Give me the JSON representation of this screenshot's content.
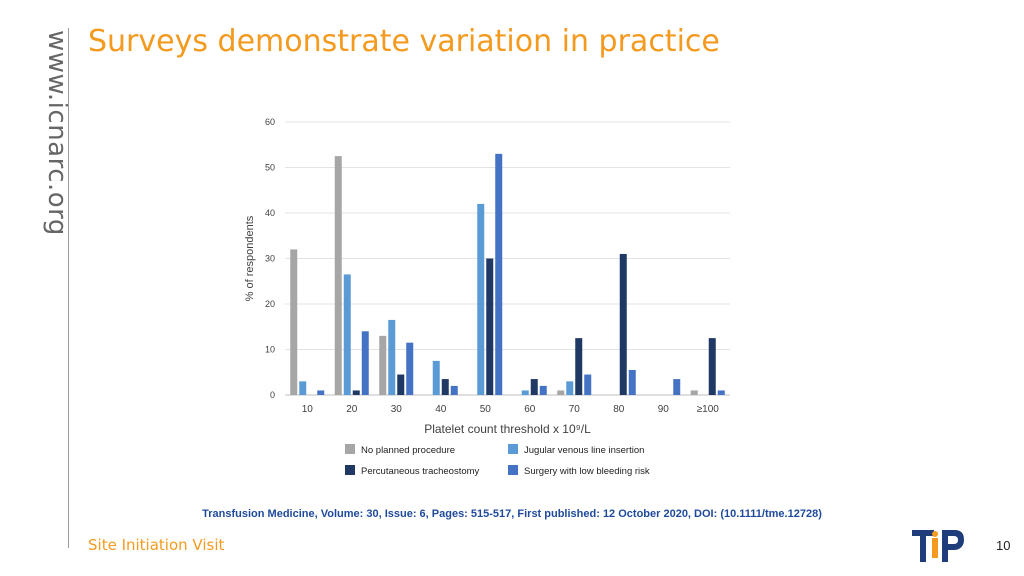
{
  "side_text": "www.icnarc.org",
  "title": "Surveys demonstrate variation in practice",
  "citation": "Transfusion Medicine, Volume: 30, Issue: 6, Pages: 515-517, First published: 12 October 2020, DOI: (10.1111/tme.12728)",
  "footer_left": "Site Initiation Visit",
  "page_number": "10",
  "logo_text": "TIP",
  "chart_data": {
    "type": "bar",
    "categories": [
      "10",
      "20",
      "30",
      "40",
      "50",
      "60",
      "70",
      "80",
      "90",
      "≥100"
    ],
    "xlabel": "Platelet count threshold x 10⁹/L",
    "ylabel": "% of respondents",
    "ylim": [
      0,
      60
    ],
    "yticks": [
      "0",
      "10",
      "20",
      "30",
      "40",
      "50",
      "60"
    ],
    "grid": true,
    "legend_position": "bottom",
    "series": [
      {
        "name": "No planned procedure",
        "color": "#a6a6a6",
        "values": [
          32,
          52.5,
          13,
          0,
          0,
          0,
          1,
          0,
          0,
          1
        ]
      },
      {
        "name": "Jugular venous line insertion",
        "color": "#5b9bd5",
        "values": [
          3,
          26.5,
          16.5,
          7.5,
          42,
          1,
          3,
          0,
          0,
          0
        ]
      },
      {
        "name": "Percutaneous tracheostomy",
        "color": "#1f3864",
        "values": [
          0,
          1,
          4.5,
          3.5,
          30,
          3.5,
          12.5,
          31,
          0,
          12.5
        ]
      },
      {
        "name": "Surgery with low bleeding risk",
        "color": "#4472c4",
        "values": [
          1,
          14,
          11.5,
          2,
          53,
          2,
          4.5,
          5.5,
          3.5,
          1
        ]
      }
    ]
  }
}
